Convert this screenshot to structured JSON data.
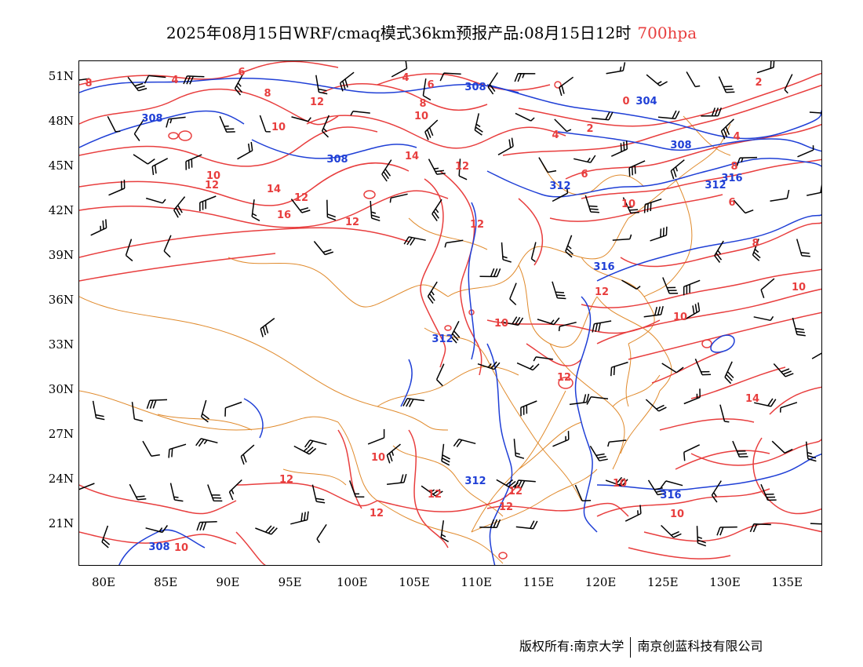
{
  "title": {
    "main": "2025年08月15日WRF/cmaq模式36km预报产品:08月15日12时",
    "level": "700hpa"
  },
  "colors": {
    "temperature_contour": "#e83e3e",
    "height_contour": "#1f3fd6",
    "boundary": "#e08a2c",
    "wind_barb": "#000000",
    "frame": "#000000",
    "level_text": "#e83e3e"
  },
  "axes": {
    "lat_labels": [
      "51N",
      "48N",
      "45N",
      "42N",
      "39N",
      "36N",
      "33N",
      "30N",
      "27N",
      "24N",
      "21N"
    ],
    "lon_labels": [
      "80E",
      "85E",
      "90E",
      "95E",
      "100E",
      "105E",
      "110E",
      "115E",
      "120E",
      "125E",
      "130E",
      "135E"
    ],
    "lat_range": [
      18,
      52
    ],
    "lon_range": [
      78,
      138
    ]
  },
  "contour_labels": {
    "temperature": [
      "8",
      "4",
      "6",
      "8",
      "4",
      "6",
      "8",
      "10",
      "12",
      "10",
      "10",
      "12",
      "14",
      "12",
      "14",
      "12",
      "16",
      "12",
      "2",
      "0",
      "4",
      "2",
      "4",
      "6",
      "8",
      "6",
      "10",
      "8",
      "10",
      "12",
      "10",
      "10",
      "12",
      "12",
      "12",
      "10",
      "14",
      "12",
      "12",
      "12",
      "10",
      "10",
      "10",
      "12"
    ],
    "height": [
      "308",
      "308",
      "308",
      "304",
      "308",
      "312",
      "312",
      "316",
      "316",
      "312",
      "312",
      "316",
      "308"
    ]
  },
  "legend_icons": [
    "wind-barb-icon",
    "temperature-contour-icon",
    "height-contour-icon",
    "boundary-icon"
  ],
  "footer": {
    "left": "版权所有:南京大学",
    "right": "南京创蓝科技有限公司"
  }
}
